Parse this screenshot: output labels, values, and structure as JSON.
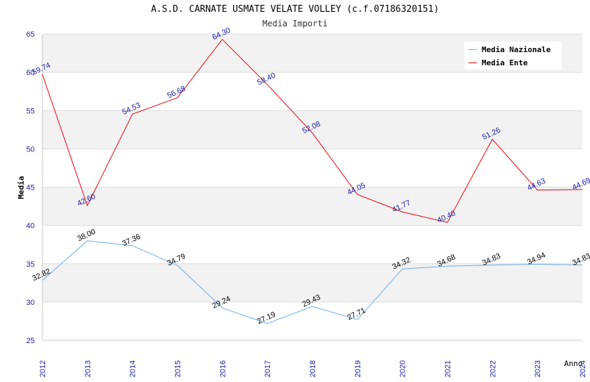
{
  "chart_data": {
    "type": "line",
    "title": "A.S.D. CARNATE USMATE VELATE VOLLEY (c.f.07186320151)",
    "subtitle": "Media Importi",
    "xlabel": "Anno",
    "ylabel": "Media",
    "ylim": [
      25,
      65
    ],
    "yticks": [
      25,
      30,
      35,
      40,
      45,
      50,
      55,
      60,
      65
    ],
    "x": [
      "2012",
      "2013",
      "2014",
      "2015",
      "2016",
      "2017",
      "2018",
      "2019",
      "2020",
      "2021",
      "2022",
      "2023",
      "2024"
    ],
    "legend_position": "top-right",
    "grid": true,
    "series": [
      {
        "name": "Media Nazionale",
        "color": "#6aaee8",
        "label_color": "#000000",
        "values": [
          32.82,
          38.0,
          37.36,
          34.79,
          29.24,
          27.19,
          29.43,
          27.71,
          34.32,
          34.68,
          34.83,
          34.94,
          34.83
        ],
        "labels": [
          "32.82",
          "38.00",
          "37.36",
          "34.79",
          "29.24",
          "27.19",
          "29.43",
          "27.71",
          "34.32",
          "34.68",
          "34.83",
          "34.94",
          "34.83"
        ]
      },
      {
        "name": "Media Ente",
        "color": "#e8000b",
        "label_color": "#1a1aa0",
        "values": [
          59.74,
          42.6,
          54.53,
          56.68,
          64.3,
          58.4,
          52.08,
          44.05,
          41.77,
          40.4,
          51.26,
          44.63,
          44.69
        ],
        "labels": [
          "59.74",
          "42.60",
          "54.53",
          "56.68",
          "64.30",
          "58.40",
          "52.08",
          "44.05",
          "41.77",
          "40.40",
          "51.26",
          "44.63",
          "44.69"
        ]
      }
    ]
  }
}
